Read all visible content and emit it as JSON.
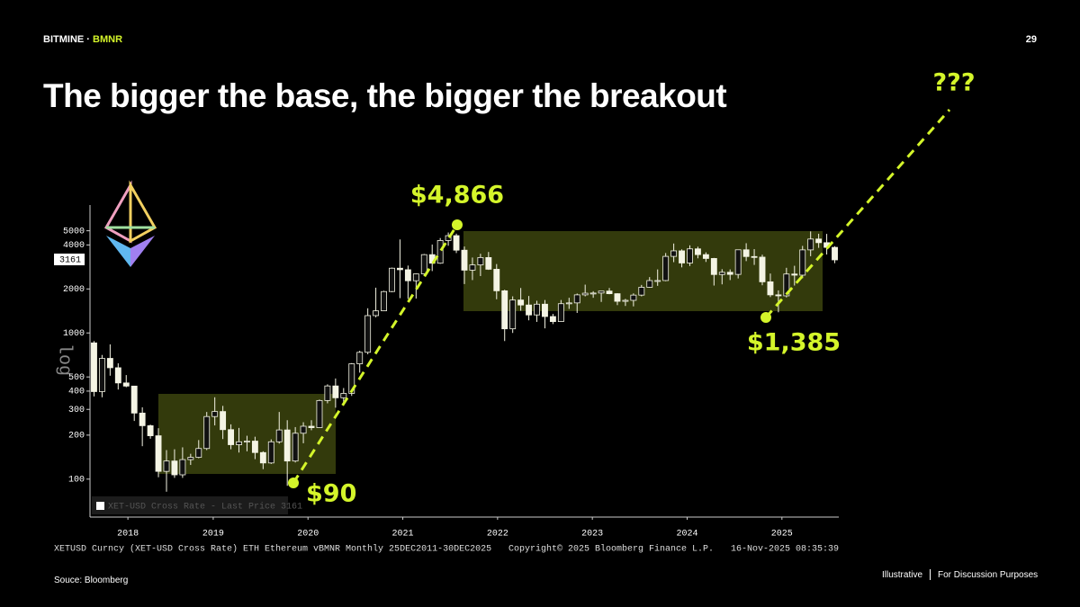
{
  "header": {
    "brand": "BITMINE ·",
    "ticker": "BMNR",
    "page": "29"
  },
  "title": "The bigger the base, the bigger the breakout",
  "footer": {
    "source": "Souce: Bloomberg",
    "note_left": "Illustrative",
    "note_right": "For Discussion Purposes"
  },
  "chart_data": {
    "type": "candlestick",
    "log_scale": true,
    "y_axis_label": "log",
    "last_price_label": "3161",
    "legend_text": "XET-USD Cross Rate - Last Price 3161",
    "info_line": "XETUSD Curncy (XET-USD Cross Rate) ETH Ethereum vBMNR Monthly 25DEC2011-30DEC2025",
    "copyright": "Copyright© 2025 Bloomberg Finance L.P.",
    "timestamp": "16-Nov-2025 08:35:39",
    "annotations": [
      "$4,866",
      "$90",
      "$1,385",
      "???"
    ],
    "up_color": "#111111",
    "down_color": "#f4f4e4",
    "wick_color": "#f4f4e4",
    "zone_color": "#333a0c",
    "accent_color": "#d4f52a",
    "xlim": [
      2018.2,
      2026.1
    ],
    "xticks": [
      {
        "value": 2018.6,
        "label": "2018"
      },
      {
        "value": 2019.5,
        "label": "2019"
      },
      {
        "value": 2020.5,
        "label": "2020"
      },
      {
        "value": 2021.5,
        "label": "2021"
      },
      {
        "value": 2022.5,
        "label": "2022"
      },
      {
        "value": 2023.5,
        "label": "2023"
      },
      {
        "value": 2024.5,
        "label": "2024"
      },
      {
        "value": 2025.5,
        "label": "2025"
      }
    ],
    "ylim": [
      55,
      7500
    ],
    "yticks": [
      100,
      200,
      300,
      400,
      500,
      1000,
      2000,
      4000,
      5000
    ],
    "open": [
      855,
      397,
      670,
      578,
      455,
      433,
      283,
      232,
      198,
      113,
      133,
      107,
      136,
      141,
      162,
      268,
      290,
      218,
      172,
      180,
      182,
      152,
      129,
      180,
      217,
      133,
      206,
      230,
      225,
      345,
      434,
      360,
      386,
      615,
      737,
      1314,
      1417,
      1919,
      2773,
      2707,
      2275,
      2536,
      3433,
      3000,
      4288,
      4631,
      3683,
      2688,
      2920,
      3280,
      2727,
      1942,
      1067,
      1680,
      1553,
      1328,
      1573,
      1295,
      1196,
      1585,
      1605,
      1822,
      1870,
      1875,
      1934,
      1856,
      1646,
      1671,
      1815,
      2053,
      2282,
      2283,
      3340,
      3645,
      3010,
      3760,
      3435,
      3232,
      2510,
      2600,
      2515,
      3705,
      3332,
      3300,
      2237,
      1822,
      1794,
      2530,
      2485,
      3700,
      4390,
      4145,
      3850
    ],
    "high": [
      880,
      707,
      835,
      620,
      515,
      435,
      310,
      236,
      223,
      158,
      160,
      165,
      149,
      185,
      288,
      363,
      317,
      237,
      224,
      198,
      195,
      155,
      187,
      288,
      253,
      227,
      245,
      253,
      350,
      445,
      488,
      420,
      622,
      755,
      1475,
      2040,
      1943,
      2800,
      4362,
      2890,
      2550,
      3470,
      4027,
      4460,
      4866,
      4780,
      3900,
      3280,
      3480,
      3580,
      2960,
      1975,
      1780,
      2030,
      1790,
      1660,
      1680,
      1350,
      1680,
      1740,
      1860,
      2140,
      1930,
      1930,
      2030,
      1870,
      1710,
      1865,
      2130,
      2410,
      2720,
      3520,
      4090,
      3730,
      3975,
      3890,
      3560,
      3260,
      2730,
      2720,
      3680,
      4110,
      3745,
      3430,
      2550,
      1955,
      2790,
      2880,
      3940,
      4950,
      4770,
      4760,
      3920
    ],
    "low": [
      368,
      363,
      510,
      410,
      425,
      250,
      168,
      189,
      103,
      82,
      102,
      102,
      125,
      139,
      158,
      233,
      188,
      160,
      152,
      155,
      137,
      117,
      127,
      175,
      90,
      130,
      176,
      216,
      225,
      330,
      308,
      335,
      371,
      535,
      715,
      1280,
      1409,
      1900,
      1730,
      1710,
      1718,
      2450,
      2650,
      2970,
      3950,
      3520,
      2160,
      2300,
      2450,
      2700,
      1700,
      880,
      1000,
      1420,
      1220,
      1190,
      1075,
      1150,
      1190,
      1460,
      1370,
      1780,
      1740,
      1630,
      1840,
      1550,
      1530,
      1520,
      1780,
      2040,
      2100,
      2260,
      3050,
      2810,
      2870,
      3240,
      3060,
      2110,
      2150,
      2300,
      2360,
      3100,
      2920,
      2120,
      1760,
      1385,
      1750,
      2110,
      2370,
      3350,
      3820,
      3440,
      3000
    ],
    "close": [
      397,
      670,
      578,
      455,
      433,
      283,
      232,
      198,
      113,
      133,
      107,
      136,
      141,
      162,
      268,
      290,
      218,
      172,
      180,
      182,
      152,
      129,
      180,
      217,
      133,
      206,
      230,
      225,
      345,
      434,
      360,
      386,
      615,
      737,
      1314,
      1417,
      1919,
      2773,
      2707,
      2275,
      2536,
      3433,
      3000,
      4288,
      4631,
      3683,
      2688,
      2920,
      3280,
      2727,
      1942,
      1067,
      1680,
      1553,
      1328,
      1573,
      1295,
      1196,
      1585,
      1605,
      1822,
      1870,
      1875,
      1934,
      1856,
      1646,
      1671,
      1815,
      2053,
      2282,
      2283,
      3340,
      3645,
      3010,
      3760,
      3435,
      3232,
      2510,
      2600,
      2515,
      3705,
      3332,
      3300,
      2237,
      1822,
      1794,
      2530,
      2485,
      3700,
      4390,
      4145,
      3850,
      3161
    ]
  }
}
